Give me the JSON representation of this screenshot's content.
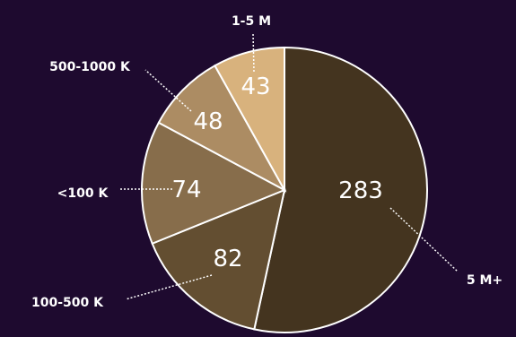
{
  "chart_data": {
    "type": "pie",
    "title": "",
    "slices": [
      {
        "label": "5 M+",
        "value": 283,
        "color": "#44341f"
      },
      {
        "label": "100-500 K",
        "value": 82,
        "color": "#634e31"
      },
      {
        "label": "<100 K",
        "value": 74,
        "color": "#876d4b"
      },
      {
        "label": "500-1000 K",
        "value": 48,
        "color": "#ac8c63"
      },
      {
        "label": "1-5 M",
        "value": 43,
        "color": "#d8b27d"
      }
    ],
    "start_angle_deg": 0,
    "direction": "clockwise",
    "legend": "none",
    "data_labels": "inside"
  },
  "colors": {
    "background": "#1e0a2f",
    "text": "#ffffff",
    "slice_border": "#ffffff"
  }
}
